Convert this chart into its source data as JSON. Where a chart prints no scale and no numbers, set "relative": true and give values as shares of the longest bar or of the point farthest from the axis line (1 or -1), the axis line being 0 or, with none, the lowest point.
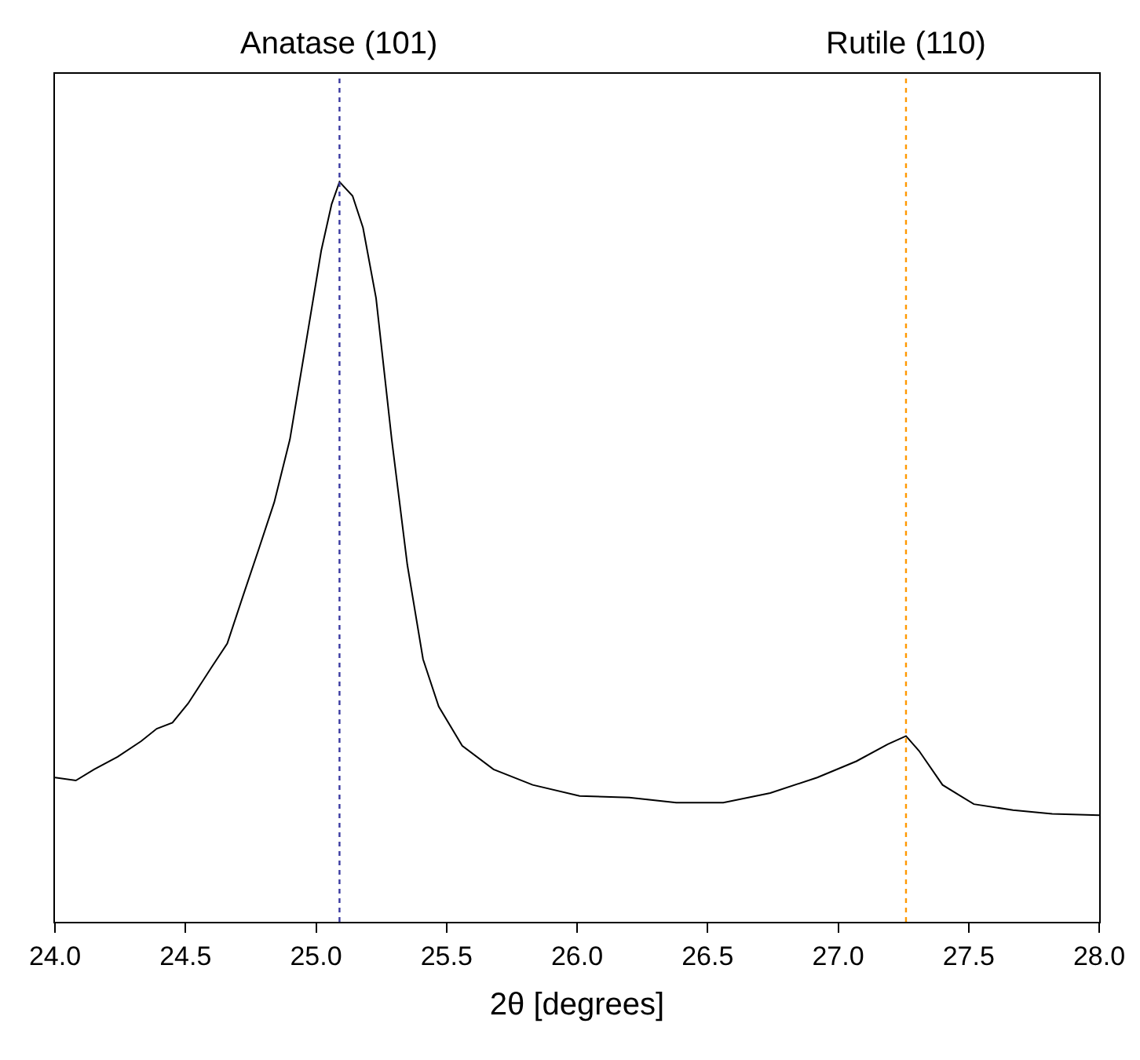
{
  "chart_data": {
    "type": "line",
    "xlabel": "2θ [degrees]",
    "relative": true,
    "tick_labels": "x",
    "grid": false,
    "marker": "none",
    "line_style": "solid",
    "xlim": [
      24.0,
      28.0
    ],
    "xticks": [
      {
        "value": 24.0,
        "label": "24.0"
      },
      {
        "value": 24.5,
        "label": "24.5"
      },
      {
        "value": 25.0,
        "label": "25.0"
      },
      {
        "value": 25.5,
        "label": "25.5"
      },
      {
        "value": 26.0,
        "label": "26.0"
      },
      {
        "value": 26.5,
        "label": "26.5"
      },
      {
        "value": 27.0,
        "label": "27.0"
      },
      {
        "value": 27.5,
        "label": "27.5"
      },
      {
        "value": 28.0,
        "label": "28.0"
      }
    ],
    "series": [
      {
        "color": "#000000",
        "x": [
          24.0,
          24.08,
          24.15,
          24.24,
          24.33,
          24.39,
          24.45,
          24.51,
          24.6,
          24.66,
          24.72,
          24.78,
          24.84,
          24.9,
          24.96,
          25.02,
          25.06,
          25.09,
          25.14,
          25.18,
          25.23,
          25.29,
          25.35,
          25.41,
          25.47,
          25.56,
          25.68,
          25.83,
          26.01,
          26.2,
          26.38,
          26.56,
          26.74,
          26.92,
          27.07,
          27.19,
          27.26,
          27.31,
          27.4,
          27.52,
          27.67,
          27.82,
          28.0
        ],
        "values": [
          0.195,
          0.191,
          0.206,
          0.223,
          0.244,
          0.261,
          0.269,
          0.295,
          0.344,
          0.376,
          0.44,
          0.503,
          0.567,
          0.652,
          0.779,
          0.907,
          0.97,
          1.0,
          0.981,
          0.938,
          0.843,
          0.652,
          0.482,
          0.355,
          0.291,
          0.238,
          0.206,
          0.185,
          0.17,
          0.168,
          0.161,
          0.161,
          0.174,
          0.195,
          0.217,
          0.24,
          0.251,
          0.231,
          0.185,
          0.159,
          0.151,
          0.146,
          0.144
        ]
      }
    ],
    "ref_lines": [
      {
        "axis": "x",
        "value": 25.09,
        "label": "Anatase (101)",
        "color": "#3a3aa0",
        "line_style": "dotted"
      },
      {
        "axis": "x",
        "value": 27.26,
        "label": "Rutile (110)",
        "color": "#ff9900",
        "line_style": "dotted"
      }
    ]
  }
}
